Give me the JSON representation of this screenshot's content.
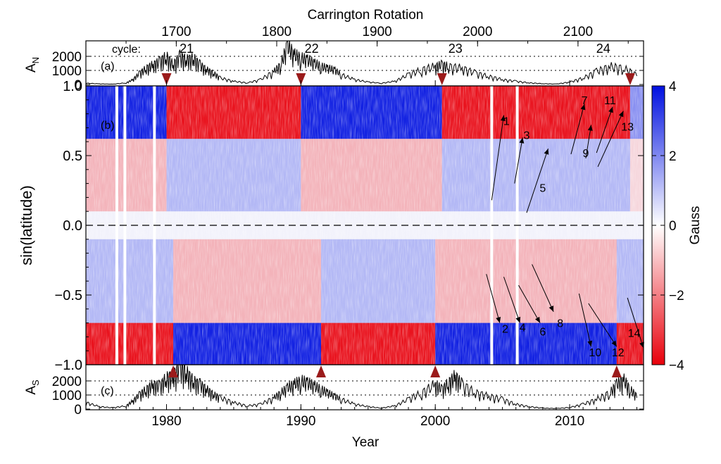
{
  "chart_data": [
    {
      "panel": "(a)",
      "type": "line",
      "ylabel": "A_N",
      "ylim": [
        0,
        2600
      ],
      "yticks": [
        0,
        1000,
        2000
      ],
      "reference_lines": [
        1000,
        2000
      ],
      "grid": false,
      "top_axis": {
        "title": "Carrington Rotation",
        "ticks": [
          1700,
          1800,
          1900,
          2000,
          2100
        ]
      },
      "cycle_prefix": "cycle:",
      "cycles": [
        {
          "label": "21",
          "year": 1981.5
        },
        {
          "label": "22",
          "year": 1990.8
        },
        {
          "label": "23",
          "year": 2001.5
        },
        {
          "label": "24",
          "year": 2012.5
        }
      ],
      "polarity_reversal_markers": [
        1980.0,
        1990.0,
        2000.5,
        2014.5
      ],
      "series": [
        {
          "x": [
            1974.0,
            1975.0,
            1976.0,
            1977.0,
            1977.5,
            1978.0,
            1978.5,
            1979.0,
            1979.5,
            1980.0,
            1980.5,
            1981.0,
            1981.5,
            1982.0,
            1982.5,
            1983.0,
            1983.5,
            1984.0,
            1985.0,
            1986.0,
            1987.0,
            1988.0,
            1988.5,
            1989.0,
            1989.5,
            1990.0,
            1990.5,
            1991.0,
            1991.5,
            1992.0,
            1992.5,
            1993.0,
            1994.0,
            1995.0,
            1996.0,
            1997.0,
            1998.0,
            1999.0,
            2000.0,
            2000.5,
            2001.0,
            2002.0,
            2003.0,
            2004.0,
            2005.0,
            2006.0,
            2007.0,
            2008.0,
            2009.0,
            2010.0,
            2011.0,
            2012.0,
            2013.0,
            2014.0,
            2015.0
          ],
          "values": [
            80,
            40,
            20,
            100,
            300,
            700,
            1000,
            1200,
            1400,
            1700,
            1200,
            1700,
            1500,
            1600,
            1200,
            900,
            700,
            400,
            200,
            100,
            300,
            800,
            1200,
            2400,
            1800,
            1600,
            1500,
            1300,
            1100,
            1000,
            900,
            600,
            300,
            150,
            80,
            200,
            600,
            900,
            1100,
            1200,
            1100,
            1000,
            700,
            500,
            300,
            200,
            100,
            50,
            30,
            150,
            400,
            800,
            1100,
            1000,
            600
          ]
        }
      ]
    },
    {
      "panel": "(b)",
      "type": "heatmap",
      "xlabel": "",
      "ylabel": "sin(latitude)",
      "xlim": [
        1974,
        2015.5
      ],
      "ylim": [
        -1.0,
        1.0
      ],
      "yticks": [
        -1.0,
        -0.5,
        0.0,
        0.5,
        1.0
      ],
      "ytick_labels": [
        "−1.0",
        "−0.5",
        "0.0",
        "0.5",
        "1.0"
      ],
      "colorbar": {
        "label": "Gauss",
        "min": -4,
        "max": 4,
        "ticks": [
          -4,
          -2,
          0,
          2,
          4
        ],
        "tick_labels": [
          "−4",
          "−2",
          "0",
          "2",
          "4"
        ],
        "colors": [
          "#e8000b",
          "#ffffff",
          "#0010e0"
        ]
      },
      "equator_line": 0.0,
      "polar_field_north": [
        {
          "from": 1974.0,
          "to": 1980.0,
          "gauss": 4
        },
        {
          "from": 1980.0,
          "to": 1990.0,
          "gauss": -4
        },
        {
          "from": 1990.0,
          "to": 2000.5,
          "gauss": 4
        },
        {
          "from": 2000.5,
          "to": 2014.5,
          "gauss": -4
        },
        {
          "from": 2014.5,
          "to": 2015.5,
          "gauss": 2
        }
      ],
      "polar_field_south": [
        {
          "from": 1974.0,
          "to": 1980.5,
          "gauss": -4
        },
        {
          "from": 1980.5,
          "to": 1991.5,
          "gauss": 4
        },
        {
          "from": 1991.5,
          "to": 2000.0,
          "gauss": -4
        },
        {
          "from": 2000.0,
          "to": 2013.5,
          "gauss": 4
        },
        {
          "from": 2013.5,
          "to": 2015.5,
          "gauss": -4
        }
      ],
      "data_gaps": [
        1976.3,
        1976.9,
        1979.1,
        2004.2,
        2006.1
      ],
      "surges": [
        {
          "label": "1",
          "x0": 2004.2,
          "y0": 0.18,
          "x1": 2005.1,
          "y1": 0.79,
          "lx": 2005.3,
          "ly": 0.75
        },
        {
          "label": "2",
          "x0": 2003.8,
          "y0": -0.35,
          "x1": 2004.8,
          "y1": -0.7,
          "lx": 2005.2,
          "ly": -0.74
        },
        {
          "label": "3",
          "x0": 2005.9,
          "y0": 0.3,
          "x1": 2006.5,
          "y1": 0.63,
          "lx": 2006.8,
          "ly": 0.65
        },
        {
          "label": "4",
          "x0": 2005.1,
          "y0": -0.37,
          "x1": 2006.3,
          "y1": -0.7,
          "lx": 2006.5,
          "ly": -0.73
        },
        {
          "label": "5",
          "x0": 2006.8,
          "y0": 0.09,
          "x1": 2008.4,
          "y1": 0.55,
          "lx": 2008.0,
          "ly": 0.27
        },
        {
          "label": "6",
          "x0": 2006.2,
          "y0": -0.43,
          "x1": 2007.8,
          "y1": -0.7,
          "lx": 2008.0,
          "ly": -0.76
        },
        {
          "label": "7",
          "x0": 2010.1,
          "y0": 0.51,
          "x1": 2011.1,
          "y1": 0.87,
          "lx": 2011.1,
          "ly": 0.9
        },
        {
          "label": "8",
          "x0": 2007.2,
          "y0": -0.28,
          "x1": 2008.8,
          "y1": -0.62,
          "lx": 2009.3,
          "ly": -0.7
        },
        {
          "label": "9",
          "x0": 2011.2,
          "y0": 0.48,
          "x1": 2011.6,
          "y1": 0.72,
          "lx": 2011.2,
          "ly": 0.52
        },
        {
          "label": "10",
          "x0": 2010.7,
          "y0": -0.49,
          "x1": 2011.6,
          "y1": -0.87,
          "lx": 2011.9,
          "ly": -0.91
        },
        {
          "label": "11",
          "x0": 2012.0,
          "y0": 0.52,
          "x1": 2013.2,
          "y1": 0.85,
          "lx": 2013.0,
          "ly": 0.9
        },
        {
          "label": "12",
          "x0": 2011.4,
          "y0": -0.56,
          "x1": 2013.5,
          "y1": -0.87,
          "lx": 2013.6,
          "ly": -0.91
        },
        {
          "label": "13",
          "x0": 2012.1,
          "y0": 0.42,
          "x1": 2014.0,
          "y1": 0.82,
          "lx": 2014.3,
          "ly": 0.71
        },
        {
          "label": "14",
          "x0": 2014.3,
          "y0": -0.52,
          "x1": 2015.5,
          "y1": -0.88,
          "lx": 2014.8,
          "ly": -0.77
        }
      ]
    },
    {
      "panel": "(c)",
      "type": "line",
      "xlabel": "Year",
      "ylabel": "A_S",
      "xlim": [
        1974,
        2015.5
      ],
      "xticks": [
        1980,
        1990,
        2000,
        2010
      ],
      "ylim": [
        0,
        2600
      ],
      "yticks": [
        0,
        1000,
        2000
      ],
      "reference_lines": [
        1000,
        2000
      ],
      "grid": false,
      "polarity_reversal_markers": [
        1980.5,
        1991.5,
        2000.0,
        2013.5
      ],
      "series": [
        {
          "x": [
            1974.0,
            1975.0,
            1976.0,
            1977.0,
            1977.5,
            1978.0,
            1978.5,
            1979.0,
            1979.5,
            1980.0,
            1980.5,
            1981.0,
            1981.5,
            1982.0,
            1982.5,
            1983.0,
            1983.5,
            1984.0,
            1985.0,
            1986.0,
            1987.0,
            1988.0,
            1988.5,
            1989.0,
            1989.5,
            1990.0,
            1990.5,
            1991.0,
            1991.5,
            1992.0,
            1992.5,
            1993.0,
            1994.0,
            1995.0,
            1996.0,
            1997.0,
            1998.0,
            1999.0,
            2000.0,
            2000.5,
            2001.0,
            2001.5,
            2002.0,
            2003.0,
            2004.0,
            2005.0,
            2006.0,
            2007.0,
            2008.0,
            2009.0,
            2010.0,
            2011.0,
            2012.0,
            2013.0,
            2013.5,
            2014.0,
            2014.5,
            2015.0
          ],
          "values": [
            400,
            150,
            80,
            200,
            500,
            900,
            1200,
            1500,
            1400,
            1900,
            2000,
            2600,
            2200,
            1700,
            1500,
            1200,
            900,
            700,
            400,
            200,
            300,
            700,
            1000,
            1300,
            1500,
            1700,
            1600,
            1400,
            1200,
            1000,
            800,
            600,
            300,
            150,
            60,
            200,
            600,
            1000,
            1500,
            1200,
            1600,
            2000,
            1500,
            1000,
            800,
            600,
            300,
            150,
            60,
            40,
            100,
            300,
            600,
            1000,
            1500,
            1800,
            1200,
            800
          ]
        }
      ]
    }
  ]
}
